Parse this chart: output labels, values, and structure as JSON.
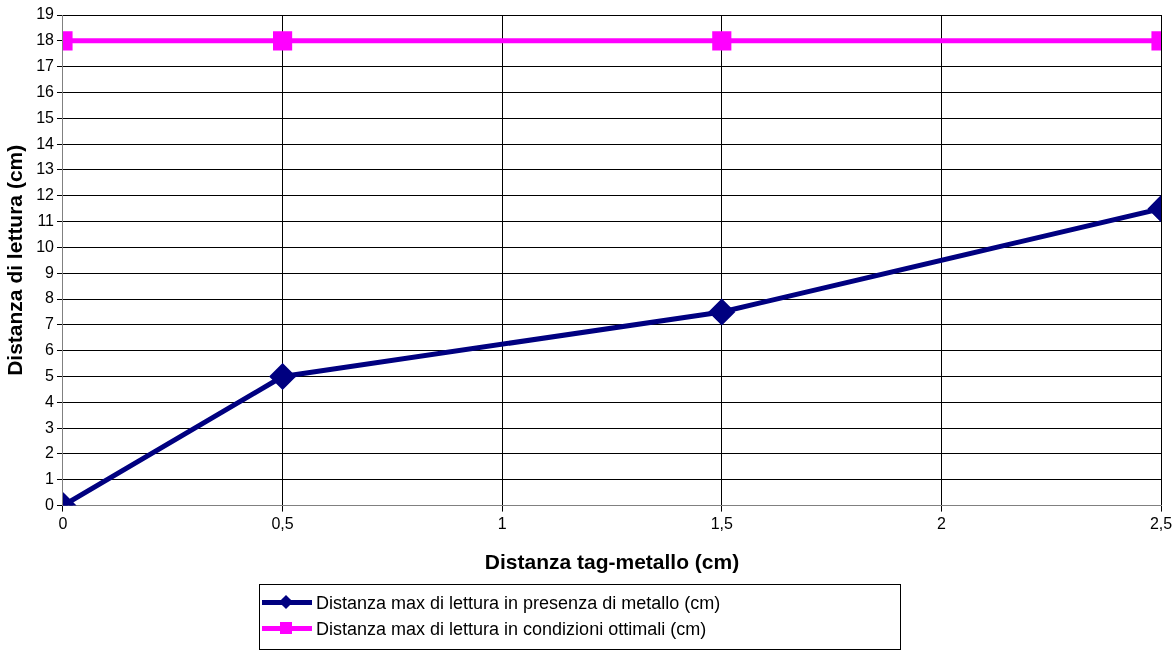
{
  "chart_data": {
    "type": "line",
    "xlabel": "Distanza tag-metallo (cm)",
    "ylabel": "Distanza di lettura (cm)",
    "xlim": [
      0,
      2.5
    ],
    "xticks": [
      0,
      {
        "value": 0.5,
        "label": "0,5"
      },
      1,
      {
        "value": 1.5,
        "label": "1,5"
      },
      2,
      {
        "value": 2.5,
        "label": "2,5"
      }
    ],
    "ylim": [
      0,
      19
    ],
    "yticks": [
      0,
      1,
      2,
      3,
      4,
      5,
      6,
      7,
      8,
      9,
      10,
      11,
      12,
      13,
      14,
      15,
      16,
      17,
      18,
      19
    ],
    "grid": true,
    "legend": "bottom",
    "line_style": "solid",
    "series": [
      {
        "name": "Distanza max di lettura in presenza di metallo (cm)",
        "color": "#000080",
        "marker": "diamond",
        "x": [
          0,
          0.5,
          1.5,
          2.5
        ],
        "values": [
          0,
          5,
          7.5,
          11.5
        ]
      },
      {
        "name": "Distanza max di lettura in condizioni ottimali (cm)",
        "color": "#ff00ff",
        "marker": "square",
        "x": [
          0,
          0.5,
          1.5,
          2.5
        ],
        "values": [
          18,
          18,
          18,
          18
        ]
      }
    ]
  }
}
